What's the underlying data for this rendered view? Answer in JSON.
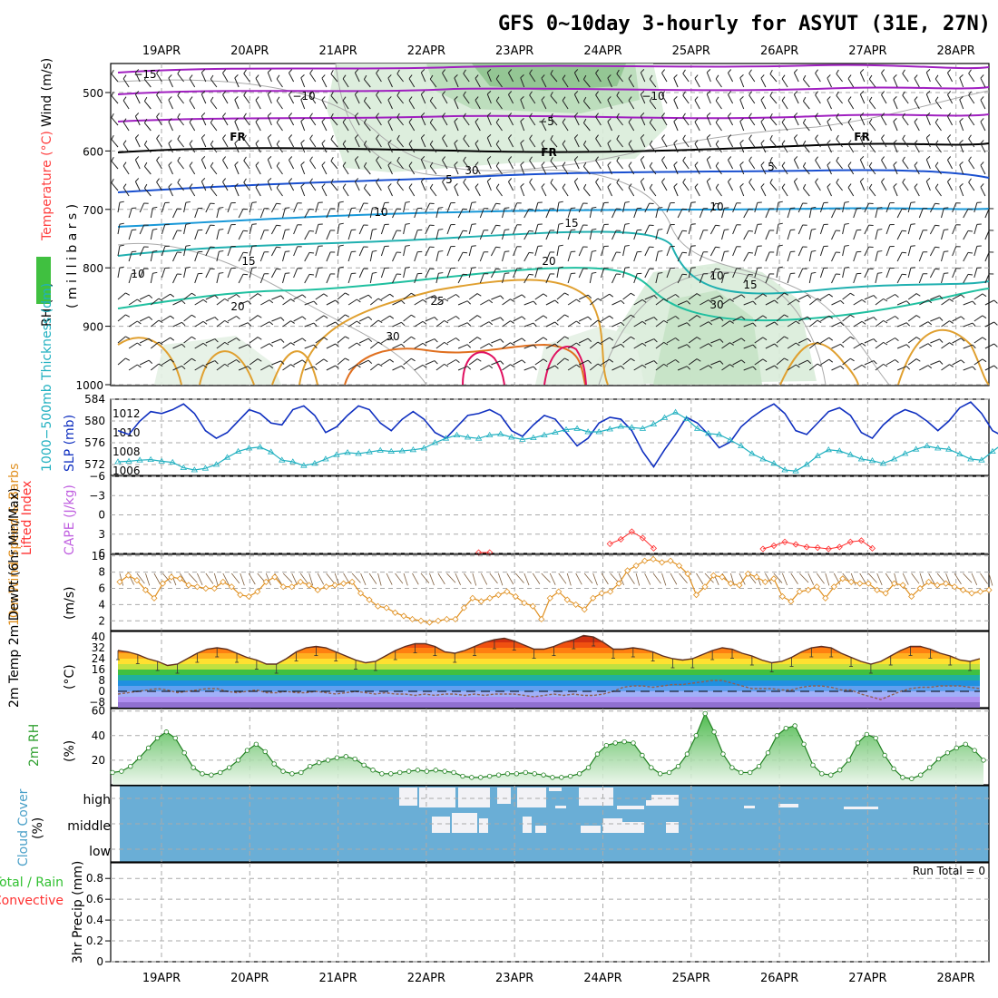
{
  "title": "GFS 0~10day 3-hourly for ASYUT (31E, 27N)",
  "dates": [
    "19APR",
    "20APR",
    "21APR",
    "22APR",
    "23APR",
    "24APR",
    "25APR",
    "26APR",
    "27APR",
    "28APR"
  ],
  "colors": {
    "wind_label": "#000000",
    "temperature_label": "#ff4040",
    "rh_label": "#000000",
    "thickness": "#20b0c0",
    "slp": "#1030c0",
    "lifted_index": "#ff3030",
    "cape": "#c060e0",
    "wind10m": "#e09020",
    "rh2m": "#30a030",
    "cloud": "#6aaed6",
    "precip_total": "#30c030",
    "precip_conv": "#ff3030"
  },
  "panels": {
    "upper": {
      "ylabel_wind": "Wind (m/s)",
      "ylabel_temp": "Temperature (°C)",
      "ylabel_rh": "RH (%)",
      "ylabel_units": "( m i l l i b a r s )",
      "yticks": [
        "500",
        "600",
        "700",
        "800",
        "900",
        "1000"
      ],
      "contour_labels": [
        "−15",
        "−10",
        "−10",
        "−5",
        "FR",
        "FR",
        "FR",
        "5",
        "5",
        "10",
        "10",
        "15",
        "15",
        "15",
        "20",
        "20",
        "25",
        "30",
        "10",
        "30",
        "10",
        "30"
      ]
    },
    "thickness": {
      "ylabel_left": "1000−500mb Thickness (dm)",
      "ylabel_right": "SLP (mb)",
      "yticks_left": [
        "584",
        "580",
        "576",
        "572"
      ],
      "yticks_right": [
        "1012",
        "1010",
        "1008",
        "1006"
      ]
    },
    "li": {
      "ylabel_left": "Lifted Index",
      "ylabel_right": "CAPE (J/kg)",
      "yticks": [
        "−6",
        "−3",
        "0",
        "3",
        "6"
      ]
    },
    "wind10m": {
      "ylabel": "10m Wind Speed & Barbs",
      "ylabel_units": "(m/s)",
      "yticks": [
        "10",
        "8",
        "6",
        "4",
        "2"
      ]
    },
    "temp2m": {
      "ylabel": "2m Temp 2m DewPt (6hr Min/Max)",
      "ylabel_units": "(°C)",
      "yticks": [
        "40",
        "32",
        "24",
        "16",
        "8",
        "0",
        "−8"
      ]
    },
    "rh2m": {
      "ylabel": "2m RH",
      "ylabel_units": "(%)",
      "yticks": [
        "60",
        "40",
        "20"
      ]
    },
    "cloud": {
      "ylabel": "Cloud Cover",
      "ylabel_units": "(%)",
      "levels": [
        "high",
        "middle",
        "low"
      ]
    },
    "precip": {
      "ylabel_total": "Total / Rain",
      "ylabel_conv": "Convective",
      "ylabel_units": "3hr Precip (mm)",
      "yticks": [
        "0.8",
        "0.6",
        "0.4",
        "0.2",
        "0"
      ],
      "run_total": "Run Total = 0"
    }
  },
  "chart_data": [
    {
      "type": "line",
      "title": "1000−500mb Thickness (dm) / SLP (mb)",
      "x_unit": "3-hourly steps from 18APR 18Z",
      "series": [
        {
          "name": "SLP (mb)",
          "axis": "right",
          "ylim": [
            1005.5,
            1013.5
          ],
          "values": [
            1010.2,
            1009.8,
            1011.2,
            1012.2,
            1012.0,
            1012.4,
            1013.0,
            1012.0,
            1010.2,
            1009.4,
            1010.0,
            1011.2,
            1012.4,
            1012.0,
            1011.0,
            1010.8,
            1012.4,
            1012.8,
            1011.8,
            1010.0,
            1010.6,
            1011.8,
            1012.8,
            1012.4,
            1011.0,
            1010.2,
            1011.4,
            1012.2,
            1011.4,
            1010.0,
            1009.4,
            1010.6,
            1011.8,
            1012.0,
            1012.4,
            1011.8,
            1010.2,
            1009.6,
            1010.8,
            1011.8,
            1011.4,
            1010.0,
            1008.6,
            1009.4,
            1011.0,
            1011.6,
            1011.4,
            1010.2,
            1008.0,
            1006.4,
            1008.2,
            1009.8,
            1011.6,
            1011.0,
            1009.8,
            1008.4,
            1009.0,
            1010.6,
            1011.6,
            1012.4,
            1013.0,
            1012.0,
            1010.2,
            1009.8,
            1011.0,
            1012.2,
            1012.6,
            1011.8,
            1010.0,
            1009.4,
            1010.8,
            1011.8,
            1012.4,
            1012.0,
            1011.2,
            1010.2,
            1011.2,
            1012.6,
            1013.2,
            1012.0,
            1010.2,
            1009.6,
            1010.6,
            1011.8,
            1011.4,
            1010.4,
            1011.4,
            1011.8
          ]
        },
        {
          "name": "1000−500mb Thickness (dm)",
          "axis": "left",
          "ylim": [
            570,
            584
          ],
          "values": [
            572.5,
            572.6,
            572.8,
            572.9,
            572.6,
            572.4,
            571.4,
            571.0,
            571.3,
            572.0,
            573.3,
            574.4,
            575.0,
            575.2,
            574.3,
            572.8,
            572.5,
            571.8,
            572.2,
            573.0,
            573.8,
            574.2,
            574.0,
            574.3,
            574.6,
            574.4,
            574.5,
            574.7,
            575.0,
            576.0,
            576.8,
            577.4,
            577.0,
            576.8,
            577.4,
            577.6,
            577.0,
            576.6,
            576.9,
            577.4,
            577.9,
            578.4,
            578.6,
            578.0,
            578.0,
            578.5,
            579.0,
            578.8,
            578.6,
            579.4,
            580.6,
            581.6,
            580.4,
            578.6,
            577.7,
            577.5,
            576.5,
            575.4,
            574.0,
            573.0,
            572.2,
            571.0,
            570.8,
            572.0,
            573.6,
            574.7,
            574.5,
            573.8,
            573.0,
            572.7,
            572.2,
            573.0,
            574.0,
            574.8,
            575.4,
            575.0,
            574.8,
            573.9,
            573.0,
            572.8,
            574.4,
            575.9,
            576.6,
            576.0,
            575.0,
            574.2,
            574.0,
            574.8
          ]
        }
      ]
    },
    {
      "type": "line",
      "title": "Lifted Index / CAPE",
      "ylim": [
        6,
        -6
      ],
      "series": [
        {
          "name": "Lifted Index",
          "values": [
            null,
            null,
            null,
            null,
            null,
            null,
            null,
            null,
            null,
            null,
            null,
            null,
            null,
            null,
            null,
            null,
            null,
            null,
            null,
            null,
            null,
            null,
            null,
            null,
            null,
            null,
            null,
            null,
            null,
            null,
            null,
            null,
            null,
            6.2,
            6.1,
            null,
            null,
            null,
            null,
            null,
            null,
            null,
            null,
            null,
            null,
            4.5,
            3.8,
            2.6,
            3.6,
            5.2,
            null,
            null,
            null,
            null,
            null,
            null,
            null,
            null,
            null,
            5.3,
            4.8,
            4.2,
            4.6,
            5.0,
            5.1,
            5.3,
            5.0,
            4.2,
            4.0,
            5.2
          ]
        }
      ]
    },
    {
      "type": "line",
      "title": "10m Wind Speed (m/s)",
      "ylim": [
        1,
        10
      ],
      "values": [
        6.8,
        7.6,
        7.0,
        5.8,
        4.8,
        6.6,
        7.4,
        7.2,
        6.4,
        6.2,
        6.0,
        6.0,
        6.8,
        6.2,
        5.2,
        5.0,
        5.6,
        6.8,
        7.4,
        6.2,
        6.2,
        6.8,
        6.4,
        5.8,
        6.2,
        6.4,
        6.6,
        6.8,
        5.4,
        4.6,
        3.8,
        3.6,
        3.0,
        2.6,
        2.2,
        2.0,
        1.8,
        2.0,
        2.2,
        2.2,
        3.6,
        4.8,
        4.4,
        4.8,
        5.2,
        5.6,
        5.0,
        4.2,
        3.8,
        2.2,
        4.8,
        5.6,
        4.6,
        4.0,
        3.4,
        4.8,
        5.4,
        5.6,
        6.6,
        8.2,
        8.8,
        9.4,
        9.6,
        9.2,
        9.4,
        8.8,
        7.8,
        5.2,
        6.2,
        7.6,
        7.4,
        6.6,
        6.4,
        7.8,
        7.4,
        6.8,
        7.2,
        5.0,
        4.4,
        5.6,
        5.8,
        6.2,
        4.8,
        6.2,
        7.2,
        6.8,
        6.6,
        6.6,
        5.8,
        5.4,
        6.6,
        6.4,
        5.0,
        6.0,
        6.8,
        6.4,
        6.6,
        6.2,
        5.8,
        5.4,
        5.6,
        5.8
      ]
    },
    {
      "type": "area",
      "title": "2m Temp / 2m DewPt (°C)",
      "ylim": [
        -12,
        44
      ],
      "series": [
        {
          "name": "2m Temp",
          "values": [
            30,
            29,
            27,
            24,
            22,
            19,
            20,
            24,
            28,
            31,
            32,
            31,
            28,
            25,
            23,
            20,
            20,
            24,
            29,
            32,
            33,
            32,
            29,
            26,
            23,
            21,
            22,
            26,
            30,
            33,
            35,
            35,
            33,
            29,
            28,
            30,
            33,
            36,
            38,
            39,
            37,
            34,
            31,
            31,
            33,
            36,
            38,
            41,
            40,
            36,
            31,
            31,
            32,
            31,
            29,
            26,
            24,
            23,
            24,
            27,
            30,
            32,
            31,
            28,
            26,
            23,
            21,
            22,
            25,
            29,
            32,
            33,
            32,
            28,
            25,
            22,
            20,
            22,
            26,
            30,
            33,
            33,
            31,
            28,
            26,
            23,
            22,
            24
          ]
        },
        {
          "name": "2m DewPt",
          "values": [
            -2,
            -1,
            0,
            1,
            2,
            1,
            -1,
            0,
            1,
            2,
            2,
            0,
            -1,
            0,
            1,
            -1,
            -1,
            0,
            -1,
            -1,
            0,
            -1,
            -2,
            -1,
            0,
            -1,
            -2,
            -1,
            -2,
            -2,
            -3,
            -2,
            -3,
            -2,
            -2,
            -3,
            -2,
            -3,
            -2,
            -2,
            -2,
            -3,
            -4,
            -3,
            -2,
            -3,
            -2,
            -3,
            -3,
            -2,
            0,
            3,
            4,
            4,
            3,
            4,
            5,
            5,
            6,
            7,
            8,
            8,
            6,
            4,
            2,
            2,
            2,
            1,
            1,
            3,
            4,
            4,
            3,
            1,
            1,
            -2,
            -4,
            -6,
            -3,
            0,
            2,
            3,
            3,
            4,
            4,
            4,
            3,
            2
          ]
        }
      ]
    },
    {
      "type": "area",
      "title": "2m RH (%)",
      "ylim": [
        0,
        62
      ],
      "values": [
        10,
        11,
        15,
        22,
        30,
        38,
        43,
        38,
        26,
        14,
        9,
        8,
        10,
        14,
        20,
        28,
        33,
        27,
        17,
        11,
        9,
        10,
        15,
        18,
        20,
        22,
        23,
        21,
        16,
        12,
        9,
        9,
        10,
        11,
        12,
        11,
        12,
        11,
        10,
        7,
        6,
        6,
        7,
        8,
        9,
        9,
        10,
        9,
        8,
        6,
        6,
        7,
        9,
        14,
        25,
        32,
        34,
        35,
        34,
        24,
        14,
        9,
        10,
        15,
        25,
        40,
        58,
        43,
        25,
        14,
        10,
        10,
        15,
        26,
        40,
        46,
        48,
        33,
        16,
        9,
        8,
        12,
        20,
        34,
        41,
        38,
        24,
        13,
        6,
        5,
        8,
        14,
        21,
        26,
        30,
        33,
        28,
        20
      ]
    },
    {
      "type": "heatmap",
      "title": "Cloud Cover (%)",
      "rows": [
        "high",
        "middle",
        "low"
      ],
      "notes": "clear sky throughout except high cloud 22APR–25APR and partial middle cloud 22APR–24APR"
    },
    {
      "type": "bar",
      "title": "3hr Precip (mm)",
      "ylim": [
        0,
        0.95
      ],
      "values": [],
      "run_total": 0
    }
  ]
}
